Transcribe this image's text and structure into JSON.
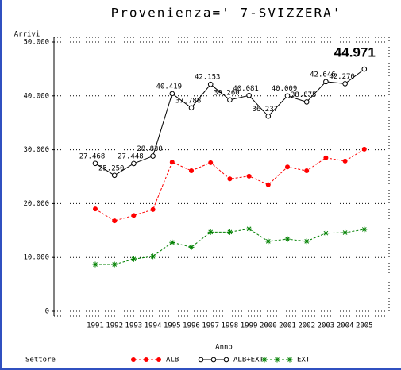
{
  "chart_data": {
    "type": "line",
    "title": "Provenienza=' 7-SVIZZERA'",
    "y_label": "Arrivi",
    "x_label": "Anno",
    "legend_title": "Settore",
    "categories": [
      "1991",
      "1992",
      "1993",
      "1994",
      "1995",
      "1996",
      "1997",
      "1998",
      "1999",
      "2000",
      "2001",
      "2002",
      "2003",
      "2004",
      "2005"
    ],
    "series": [
      {
        "name": "ALB",
        "color": "#ff0000",
        "marker": "dot",
        "dashed": true,
        "values": [
          19000,
          16800,
          17800,
          18900,
          27700,
          26100,
          27600,
          24600,
          25100,
          23500,
          26800,
          26100,
          28500,
          27900,
          30100
        ]
      },
      {
        "name": "ALB+EXT",
        "color": "#000000",
        "marker": "circle",
        "dashed": false,
        "values": [
          27468,
          25250,
          27448,
          28830,
          40419,
          37788,
          42153,
          39260,
          40081,
          36237,
          40009,
          38875,
          42646,
          42270,
          44971
        ],
        "value_labels": [
          "27.468",
          "25.250",
          "27.448",
          "28.830",
          "40.419",
          "37.788",
          "42.153",
          "39.260",
          "40.081",
          "36.237",
          "40.009",
          "38.875",
          "42.646",
          "42.270",
          "44.971"
        ]
      },
      {
        "name": "EXT",
        "color": "#008000",
        "marker": "star",
        "dashed": true,
        "values": [
          8700,
          8700,
          9700,
          10200,
          12800,
          11900,
          14700,
          14700,
          15300,
          13000,
          13400,
          13000,
          14500,
          14600,
          15200
        ]
      }
    ],
    "ylim": [
      0,
      50000
    ],
    "yticks": [
      0,
      {
        "value": 10000,
        "label": "10.000"
      },
      {
        "value": 20000,
        "label": "20.000"
      },
      {
        "value": 30000,
        "label": "30.000"
      },
      {
        "value": 40000,
        "label": "40.000"
      },
      {
        "value": 50000,
        "label": "50.000"
      }
    ],
    "grid": true,
    "legend": "bottom"
  }
}
